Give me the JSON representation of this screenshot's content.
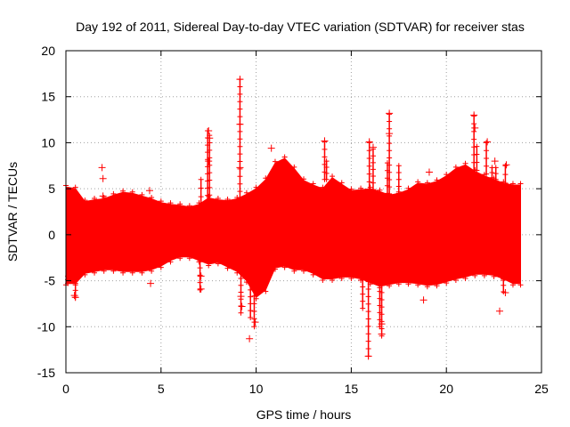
{
  "chart_data": {
    "type": "scatter",
    "title": "Day 192 of 2011, Sidereal Day-to-day VTEC variation (SDTVAR) for receiver stas",
    "xlabel": "GPS time / hours",
    "ylabel": "SDTVAR / TECUs",
    "xlim": [
      0,
      25
    ],
    "ylim": [
      -15,
      20
    ],
    "xticks": [
      0,
      5,
      10,
      15,
      20,
      25
    ],
    "yticks": [
      -15,
      -10,
      -5,
      0,
      5,
      10,
      15,
      20
    ],
    "grid": true,
    "marker": "+",
    "color": "#ff0000",
    "series": [
      {
        "name": "SDTVAR",
        "envelope_x": [
          0,
          0.5,
          1,
          1.5,
          2,
          2.5,
          3,
          3.5,
          4,
          4.5,
          5,
          5.5,
          6,
          6.5,
          7,
          7.5,
          8,
          8.5,
          9,
          9.5,
          10,
          10.5,
          11,
          11.5,
          12,
          12.5,
          13,
          13.5,
          14,
          14.5,
          15,
          15.5,
          16,
          16.5,
          17,
          17.5,
          18,
          18.5,
          19,
          19.5,
          20,
          20.5,
          21,
          21.5,
          22,
          22.5,
          23,
          23.5,
          23.9
        ],
        "envelope_upper": [
          5.2,
          5.0,
          3.6,
          3.8,
          3.9,
          4.3,
          4.6,
          4.5,
          4.2,
          3.9,
          3.5,
          3.3,
          3.2,
          3.0,
          3.3,
          4.0,
          3.8,
          3.7,
          3.9,
          4.4,
          5.0,
          6.0,
          7.8,
          8.3,
          7.2,
          5.9,
          5.4,
          5.0,
          6.2,
          5.5,
          4.8,
          4.9,
          5.0,
          4.7,
          4.3,
          4.5,
          4.9,
          5.6,
          5.5,
          5.8,
          6.4,
          7.2,
          7.6,
          6.9,
          6.4,
          6.0,
          5.6,
          5.4,
          5.4
        ],
        "envelope_lower": [
          -5.3,
          -5.3,
          -4.2,
          -4.0,
          -3.8,
          -3.8,
          -4.0,
          -4.0,
          -4.0,
          -3.8,
          -3.4,
          -2.8,
          -2.4,
          -2.4,
          -2.8,
          -3.2,
          -3.0,
          -3.5,
          -4.0,
          -5.0,
          -6.8,
          -6.0,
          -3.6,
          -3.4,
          -3.8,
          -3.8,
          -4.2,
          -4.8,
          -4.8,
          -4.6,
          -4.6,
          -4.8,
          -5.2,
          -5.6,
          -5.4,
          -5.2,
          -5.2,
          -5.3,
          -5.5,
          -5.4,
          -5.1,
          -4.8,
          -4.6,
          -4.3,
          -4.3,
          -4.4,
          -4.8,
          -5.3,
          -5.3
        ],
        "outliers": [
          {
            "x": 1.9,
            "y": 7.3
          },
          {
            "x": 1.95,
            "y": 6.1
          },
          {
            "x": 1.95,
            "y": 4.2
          },
          {
            "x": 4.4,
            "y": 4.8
          },
          {
            "x": 4.45,
            "y": -5.3
          },
          {
            "x": 7.1,
            "y": -5.9
          },
          {
            "x": 7.1,
            "y": -4.5
          },
          {
            "x": 7.5,
            "y": 11.3
          },
          {
            "x": 7.55,
            "y": 10.5
          },
          {
            "x": 7.5,
            "y": 8.0
          },
          {
            "x": 9.15,
            "y": 16.9
          },
          {
            "x": 9.15,
            "y": 12.0
          },
          {
            "x": 9.15,
            "y": 7.3
          },
          {
            "x": 9.2,
            "y": -6.7
          },
          {
            "x": 9.25,
            "y": -7.8
          },
          {
            "x": 9.65,
            "y": -11.3
          },
          {
            "x": 9.95,
            "y": -9.5
          },
          {
            "x": 10.8,
            "y": 9.4
          },
          {
            "x": 13.6,
            "y": 10.2
          },
          {
            "x": 15.95,
            "y": 10.1
          },
          {
            "x": 15.9,
            "y": -13.2
          },
          {
            "x": 16.15,
            "y": 9.5
          },
          {
            "x": 16.6,
            "y": -9.7
          },
          {
            "x": 16.6,
            "y": -10.8
          },
          {
            "x": 17.0,
            "y": 13.2
          },
          {
            "x": 17.0,
            "y": 11.0
          },
          {
            "x": 18.8,
            "y": -7.1
          },
          {
            "x": 19.1,
            "y": 6.8
          },
          {
            "x": 21.45,
            "y": 13.0
          },
          {
            "x": 21.5,
            "y": 11.6
          },
          {
            "x": 22.15,
            "y": 10.1
          },
          {
            "x": 22.55,
            "y": 8.0
          },
          {
            "x": 22.8,
            "y": -8.3
          },
          {
            "x": 23.1,
            "y": -6.3
          },
          {
            "x": 23.15,
            "y": 7.6
          },
          {
            "x": 0.45,
            "y": -6.6
          },
          {
            "x": 0.5,
            "y": -6.8
          }
        ],
        "spikes": [
          {
            "x": 7.45,
            "from": 3.5,
            "to": 11.3
          },
          {
            "x": 7.55,
            "from": 3.5,
            "to": 10.8
          },
          {
            "x": 7.05,
            "from": -2.8,
            "to": -6.0
          },
          {
            "x": 7.1,
            "from": 3.2,
            "to": 6.0
          },
          {
            "x": 9.15,
            "from": 3.9,
            "to": 16.9
          },
          {
            "x": 9.2,
            "from": -4.0,
            "to": -8.5
          },
          {
            "x": 9.7,
            "from": -4.5,
            "to": -9.0
          },
          {
            "x": 9.9,
            "from": -5.0,
            "to": -10.0
          },
          {
            "x": 13.6,
            "from": 6.0,
            "to": 10.1
          },
          {
            "x": 13.7,
            "from": 6.0,
            "to": 8.0
          },
          {
            "x": 15.95,
            "from": 4.9,
            "to": 10.0
          },
          {
            "x": 15.9,
            "from": -5.1,
            "to": -13.2
          },
          {
            "x": 15.6,
            "from": -4.9,
            "to": -8.0
          },
          {
            "x": 16.15,
            "from": 4.9,
            "to": 9.3
          },
          {
            "x": 16.5,
            "from": -5.4,
            "to": -10.0
          },
          {
            "x": 16.6,
            "from": -5.5,
            "to": -11.0
          },
          {
            "x": 16.9,
            "from": 4.5,
            "to": 7.8
          },
          {
            "x": 17.0,
            "from": 4.4,
            "to": 13.1
          },
          {
            "x": 17.5,
            "from": 4.5,
            "to": 7.5
          },
          {
            "x": 21.45,
            "from": 7.0,
            "to": 12.9
          },
          {
            "x": 21.6,
            "from": 7.0,
            "to": 9.6
          },
          {
            "x": 22.1,
            "from": 6.6,
            "to": 10.0
          },
          {
            "x": 22.4,
            "from": 6.2,
            "to": 7.3
          },
          {
            "x": 22.6,
            "from": 6.0,
            "to": 7.3
          },
          {
            "x": 23.1,
            "from": 5.6,
            "to": 7.5
          },
          {
            "x": 23.0,
            "from": -4.8,
            "to": -6.2
          },
          {
            "x": 0.5,
            "from": -5.3,
            "to": -6.8
          },
          {
            "x": 0.1,
            "from": -5.3,
            "to": -4.5
          }
        ]
      }
    ]
  }
}
